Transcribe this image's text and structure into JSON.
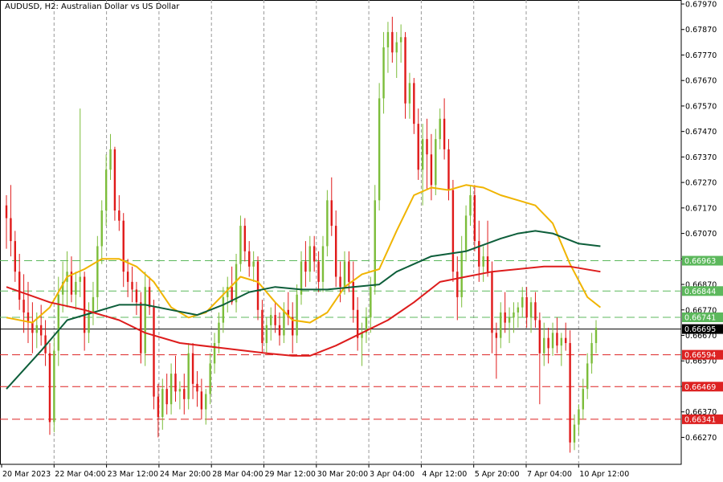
{
  "chart_data": {
    "type": "candlestick",
    "title": "AUDUSD, H2:  Australian Dollar vs US Dollar",
    "ylim": [
      0.6618,
      0.6797
    ],
    "y_ticks": [
      "0.67970",
      "0.67870",
      "0.67770",
      "0.67670",
      "0.67570",
      "0.67470",
      "0.67370",
      "0.67270",
      "0.67170",
      "0.67070",
      "0.66970",
      "0.66870",
      "0.66770",
      "0.66670",
      "0.66570",
      "0.66470",
      "0.66370",
      "0.66270"
    ],
    "x_tick_labels": [
      "20 Mar 2023",
      "22 Mar 04:00",
      "23 Mar 12:00",
      "24 Mar 20:00",
      "28 Mar 04:00",
      "29 Mar 12:00",
      "30 Mar 20:00",
      "3 Apr 04:00",
      "4 Apr 12:00",
      "5 Apr 20:00",
      "7 Apr 04:00",
      "10 Apr 12:00"
    ],
    "current_price": "0.66695",
    "price_levels": [
      {
        "label": "0.66963",
        "value": 0.66963,
        "color": "#5cb85c",
        "style": "dashed"
      },
      {
        "label": "0.66844",
        "value": 0.66844,
        "color": "#5cb85c",
        "style": "dashed"
      },
      {
        "label": "0.66741",
        "value": 0.66741,
        "color": "#5cb85c",
        "style": "dashed"
      },
      {
        "label": "0.66594",
        "value": 0.66594,
        "color": "#dd2222",
        "style": "dashed"
      },
      {
        "label": "0.66469",
        "value": 0.66469,
        "color": "#dd2222",
        "style": "dashed"
      },
      {
        "label": "0.66341",
        "value": 0.66341,
        "color": "#dd2222",
        "style": "dashed"
      }
    ],
    "candles": [
      [
        0.6718,
        0.6722,
        0.6701,
        0.6713
      ],
      [
        0.6713,
        0.6726,
        0.6698,
        0.6704
      ],
      [
        0.6704,
        0.6708,
        0.6688,
        0.6692
      ],
      [
        0.6692,
        0.6699,
        0.6677,
        0.6681
      ],
      [
        0.6681,
        0.6691,
        0.6668,
        0.6676
      ],
      [
        0.6676,
        0.6688,
        0.6664,
        0.6672
      ],
      [
        0.6672,
        0.668,
        0.666,
        0.6668
      ],
      [
        0.6668,
        0.6676,
        0.6662,
        0.6671
      ],
      [
        0.6671,
        0.6679,
        0.6663,
        0.6667
      ],
      [
        0.6667,
        0.6673,
        0.6655,
        0.666
      ],
      [
        0.666,
        0.6664,
        0.6628,
        0.6633
      ],
      [
        0.6633,
        0.6666,
        0.6629,
        0.6661
      ],
      [
        0.6661,
        0.669,
        0.6655,
        0.6683
      ],
      [
        0.6683,
        0.6696,
        0.6676,
        0.6688
      ],
      [
        0.6688,
        0.67,
        0.6678,
        0.6692
      ],
      [
        0.6692,
        0.6698,
        0.668,
        0.6683
      ],
      [
        0.6683,
        0.6692,
        0.6677,
        0.6688
      ],
      [
        0.6688,
        0.6756,
        0.6682,
        0.669
      ],
      [
        0.669,
        0.6692,
        0.6661,
        0.6668
      ],
      [
        0.6668,
        0.668,
        0.6664,
        0.6676
      ],
      [
        0.6676,
        0.6688,
        0.6671,
        0.6682
      ],
      [
        0.6682,
        0.6706,
        0.6677,
        0.6702
      ],
      [
        0.6702,
        0.672,
        0.6695,
        0.6716
      ],
      [
        0.6716,
        0.6738,
        0.671,
        0.6732
      ],
      [
        0.6732,
        0.6746,
        0.6728,
        0.674
      ],
      [
        0.674,
        0.6741,
        0.6712,
        0.6716
      ],
      [
        0.6716,
        0.6722,
        0.6708,
        0.6712
      ],
      [
        0.6712,
        0.6715,
        0.6686,
        0.6692
      ],
      [
        0.6692,
        0.6697,
        0.6682,
        0.6688
      ],
      [
        0.6688,
        0.6694,
        0.668,
        0.6685
      ],
      [
        0.6685,
        0.6688,
        0.6675,
        0.668
      ],
      [
        0.668,
        0.6684,
        0.6656,
        0.666
      ],
      [
        0.666,
        0.6692,
        0.6655,
        0.6686
      ],
      [
        0.6686,
        0.669,
        0.6675,
        0.6678
      ],
      [
        0.6678,
        0.6681,
        0.6638,
        0.6643
      ],
      [
        0.6643,
        0.6648,
        0.6627,
        0.6635
      ],
      [
        0.6635,
        0.665,
        0.663,
        0.6646
      ],
      [
        0.6646,
        0.6652,
        0.6636,
        0.664
      ],
      [
        0.664,
        0.6656,
        0.6636,
        0.6652
      ],
      [
        0.6652,
        0.6659,
        0.6641,
        0.6645
      ],
      [
        0.6645,
        0.6649,
        0.6638,
        0.6646
      ],
      [
        0.6646,
        0.6652,
        0.6636,
        0.6642
      ],
      [
        0.6642,
        0.6664,
        0.6638,
        0.666
      ],
      [
        0.666,
        0.6664,
        0.6642,
        0.6648
      ],
      [
        0.6648,
        0.6653,
        0.6639,
        0.6645
      ],
      [
        0.6645,
        0.665,
        0.6634,
        0.6638
      ],
      [
        0.6638,
        0.6646,
        0.6632,
        0.6644
      ],
      [
        0.6644,
        0.666,
        0.664,
        0.6656
      ],
      [
        0.6656,
        0.6668,
        0.6652,
        0.6664
      ],
      [
        0.6664,
        0.6676,
        0.666,
        0.6672
      ],
      [
        0.6672,
        0.6686,
        0.6668,
        0.6682
      ],
      [
        0.6682,
        0.669,
        0.6676,
        0.6686
      ],
      [
        0.6686,
        0.6694,
        0.6679,
        0.668
      ],
      [
        0.668,
        0.6699,
        0.6676,
        0.6695
      ],
      [
        0.6695,
        0.6714,
        0.6692,
        0.671
      ],
      [
        0.671,
        0.6713,
        0.6696,
        0.67
      ],
      [
        0.67,
        0.6704,
        0.669,
        0.6694
      ],
      [
        0.6694,
        0.67,
        0.6688,
        0.6696
      ],
      [
        0.6696,
        0.6698,
        0.6673,
        0.6677
      ],
      [
        0.6677,
        0.6681,
        0.666,
        0.6664
      ],
      [
        0.6664,
        0.6674,
        0.666,
        0.6671
      ],
      [
        0.6671,
        0.6678,
        0.6665,
        0.6675
      ],
      [
        0.6675,
        0.668,
        0.6668,
        0.6671
      ],
      [
        0.6671,
        0.6676,
        0.6663,
        0.6667
      ],
      [
        0.6667,
        0.668,
        0.6664,
        0.6677
      ],
      [
        0.6677,
        0.6684,
        0.6671,
        0.6674
      ],
      [
        0.6674,
        0.668,
        0.666,
        0.6667
      ],
      [
        0.6667,
        0.6687,
        0.6664,
        0.6683
      ],
      [
        0.6683,
        0.67,
        0.6679,
        0.6696
      ],
      [
        0.6696,
        0.6704,
        0.6686,
        0.6692
      ],
      [
        0.6692,
        0.6706,
        0.6688,
        0.6702
      ],
      [
        0.6702,
        0.6706,
        0.6692,
        0.6696
      ],
      [
        0.6696,
        0.67,
        0.6684,
        0.6688
      ],
      [
        0.6688,
        0.6706,
        0.6684,
        0.6702
      ],
      [
        0.6702,
        0.6724,
        0.6698,
        0.672
      ],
      [
        0.672,
        0.6729,
        0.6706,
        0.671
      ],
      [
        0.671,
        0.6716,
        0.6686,
        0.669
      ],
      [
        0.669,
        0.6696,
        0.668,
        0.6686
      ],
      [
        0.6686,
        0.67,
        0.6683,
        0.6696
      ],
      [
        0.6696,
        0.67,
        0.6684,
        0.6688
      ],
      [
        0.6688,
        0.6696,
        0.6672,
        0.6677
      ],
      [
        0.6677,
        0.6682,
        0.6661,
        0.6666
      ],
      [
        0.6666,
        0.6672,
        0.6655,
        0.6668
      ],
      [
        0.6668,
        0.6678,
        0.6664,
        0.6674
      ],
      [
        0.6674,
        0.669,
        0.6668,
        0.6686
      ],
      [
        0.6686,
        0.6726,
        0.6683,
        0.672
      ],
      [
        0.672,
        0.6766,
        0.6716,
        0.676
      ],
      [
        0.676,
        0.6786,
        0.6754,
        0.678
      ],
      [
        0.678,
        0.679,
        0.677,
        0.6786
      ],
      [
        0.6786,
        0.6792,
        0.6774,
        0.6778
      ],
      [
        0.6778,
        0.6786,
        0.6768,
        0.6782
      ],
      [
        0.6782,
        0.6789,
        0.6774,
        0.6784
      ],
      [
        0.6784,
        0.6786,
        0.6752,
        0.6758
      ],
      [
        0.6758,
        0.677,
        0.6752,
        0.6766
      ],
      [
        0.6766,
        0.6768,
        0.6746,
        0.675
      ],
      [
        0.675,
        0.6756,
        0.6728,
        0.6732
      ],
      [
        0.6732,
        0.675,
        0.6718,
        0.6744
      ],
      [
        0.6744,
        0.6752,
        0.6724,
        0.6738
      ],
      [
        0.6738,
        0.6746,
        0.672,
        0.6726
      ],
      [
        0.6726,
        0.6748,
        0.6722,
        0.6744
      ],
      [
        0.6744,
        0.6756,
        0.674,
        0.6752
      ],
      [
        0.6752,
        0.676,
        0.6736,
        0.674
      ],
      [
        0.674,
        0.6744,
        0.672,
        0.6724
      ],
      [
        0.6724,
        0.6728,
        0.6688,
        0.6692
      ],
      [
        0.6692,
        0.6698,
        0.6673,
        0.6682
      ],
      [
        0.6682,
        0.6706,
        0.6678,
        0.67
      ],
      [
        0.67,
        0.6718,
        0.6696,
        0.6714
      ],
      [
        0.6714,
        0.6726,
        0.671,
        0.6722
      ],
      [
        0.6722,
        0.6726,
        0.67,
        0.6704
      ],
      [
        0.6704,
        0.6712,
        0.6688,
        0.6694
      ],
      [
        0.6694,
        0.6702,
        0.6688,
        0.6698
      ],
      [
        0.6698,
        0.6712,
        0.669,
        0.6692
      ],
      [
        0.6692,
        0.6696,
        0.666,
        0.6668
      ],
      [
        0.6668,
        0.6672,
        0.665,
        0.6666
      ],
      [
        0.6666,
        0.668,
        0.6662,
        0.6676
      ],
      [
        0.6676,
        0.6684,
        0.6668,
        0.6672
      ],
      [
        0.6672,
        0.6678,
        0.6664,
        0.6674
      ],
      [
        0.6674,
        0.668,
        0.6668,
        0.6676
      ],
      [
        0.6676,
        0.668,
        0.667,
        0.6678
      ],
      [
        0.6678,
        0.6686,
        0.6674,
        0.6682
      ],
      [
        0.6682,
        0.6686,
        0.667,
        0.6674
      ],
      [
        0.6674,
        0.6682,
        0.6668,
        0.668
      ],
      [
        0.668,
        0.6684,
        0.667,
        0.6673
      ],
      [
        0.6673,
        0.6676,
        0.664,
        0.666
      ],
      [
        0.666,
        0.6672,
        0.6655,
        0.6666
      ],
      [
        0.6666,
        0.667,
        0.6656,
        0.6662
      ],
      [
        0.6662,
        0.6672,
        0.6659,
        0.6668
      ],
      [
        0.6668,
        0.6674,
        0.666,
        0.6663
      ],
      [
        0.6663,
        0.6668,
        0.6655,
        0.6666
      ],
      [
        0.6666,
        0.6672,
        0.6661,
        0.6664
      ],
      [
        0.6664,
        0.6669,
        0.6621,
        0.6625
      ],
      [
        0.6625,
        0.6636,
        0.6622,
        0.6632
      ],
      [
        0.6632,
        0.664,
        0.6628,
        0.6638
      ],
      [
        0.6638,
        0.665,
        0.6634,
        0.6646
      ],
      [
        0.6646,
        0.666,
        0.6642,
        0.6656
      ],
      [
        0.6656,
        0.6668,
        0.6652,
        0.6664
      ],
      [
        0.6664,
        0.6673,
        0.666,
        0.667
      ]
    ],
    "moving_averages": [
      {
        "color": "#f0b400",
        "values": [
          [
            0,
            0.6674
          ],
          [
            6,
            0.6672
          ],
          [
            10,
            0.6678
          ],
          [
            14,
            0.669
          ],
          [
            18,
            0.6693
          ],
          [
            22,
            0.6697
          ],
          [
            26,
            0.6697
          ],
          [
            30,
            0.6694
          ],
          [
            34,
            0.6688
          ],
          [
            38,
            0.6678
          ],
          [
            42,
            0.6674
          ],
          [
            46,
            0.6676
          ],
          [
            50,
            0.6683
          ],
          [
            54,
            0.669
          ],
          [
            58,
            0.6688
          ],
          [
            62,
            0.668
          ],
          [
            66,
            0.6673
          ],
          [
            70,
            0.6672
          ],
          [
            74,
            0.6676
          ],
          [
            78,
            0.6686
          ],
          [
            82,
            0.6691
          ],
          [
            86,
            0.6693
          ],
          [
            90,
            0.6708
          ],
          [
            94,
            0.6722
          ],
          [
            98,
            0.6725
          ],
          [
            102,
            0.6724
          ],
          [
            106,
            0.6726
          ],
          [
            110,
            0.6725
          ],
          [
            114,
            0.6722
          ],
          [
            118,
            0.672
          ],
          [
            122,
            0.6718
          ],
          [
            126,
            0.6711
          ],
          [
            130,
            0.6695
          ],
          [
            134,
            0.6682
          ],
          [
            137,
            0.6678
          ]
        ]
      },
      {
        "color": "#0d5e3a",
        "values": [
          [
            0,
            0.6646
          ],
          [
            8,
            0.6661
          ],
          [
            14,
            0.6673
          ],
          [
            20,
            0.6676
          ],
          [
            26,
            0.6679
          ],
          [
            32,
            0.6679
          ],
          [
            38,
            0.6677
          ],
          [
            44,
            0.6675
          ],
          [
            50,
            0.6679
          ],
          [
            56,
            0.6684
          ],
          [
            62,
            0.6686
          ],
          [
            68,
            0.6685
          ],
          [
            74,
            0.6685
          ],
          [
            80,
            0.6686
          ],
          [
            86,
            0.6687
          ],
          [
            90,
            0.6692
          ],
          [
            98,
            0.6698
          ],
          [
            106,
            0.67
          ],
          [
            114,
            0.6705
          ],
          [
            118,
            0.6707
          ],
          [
            122,
            0.6708
          ],
          [
            126,
            0.6707
          ],
          [
            132,
            0.6703
          ],
          [
            137,
            0.6702
          ]
        ]
      },
      {
        "color": "#dd1c1c",
        "values": [
          [
            0,
            0.6686
          ],
          [
            10,
            0.668
          ],
          [
            18,
            0.6677
          ],
          [
            26,
            0.6673
          ],
          [
            32,
            0.6668
          ],
          [
            40,
            0.6664
          ],
          [
            50,
            0.6662
          ],
          [
            60,
            0.666
          ],
          [
            66,
            0.6659
          ],
          [
            70,
            0.6659
          ],
          [
            76,
            0.6663
          ],
          [
            82,
            0.6668
          ],
          [
            88,
            0.6673
          ],
          [
            94,
            0.668
          ],
          [
            100,
            0.6688
          ],
          [
            106,
            0.669
          ],
          [
            112,
            0.6692
          ],
          [
            118,
            0.6693
          ],
          [
            124,
            0.6694
          ],
          [
            130,
            0.6694
          ],
          [
            137,
            0.6692
          ]
        ]
      }
    ]
  }
}
